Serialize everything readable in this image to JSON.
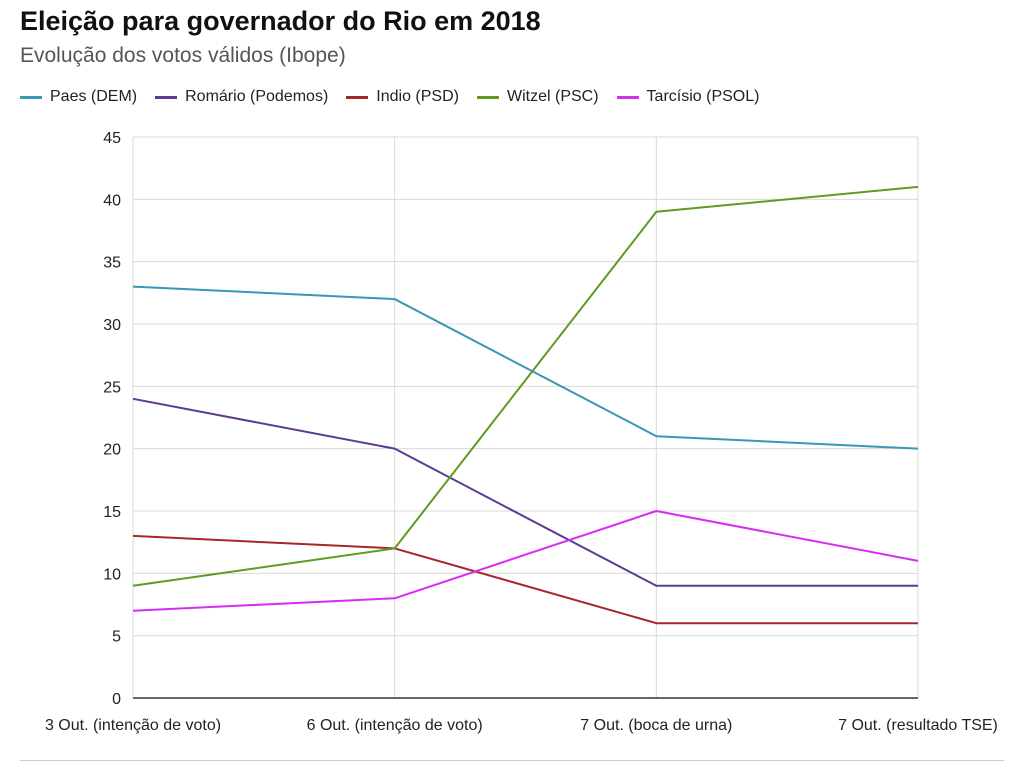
{
  "chart_data": {
    "type": "line",
    "title": "Eleição para governador do Rio em 2018",
    "subtitle": "Evolução dos votos válidos (Ibope)",
    "categories": [
      "3 Out. (intenção de voto)",
      "6 Out. (intenção de voto)",
      "7 Out. (boca de urna)",
      "7 Out. (resultado TSE)"
    ],
    "ylim": [
      0,
      45
    ],
    "yticks": [
      0,
      5,
      10,
      15,
      20,
      25,
      30,
      35,
      40,
      45
    ],
    "grid": true,
    "legend_position": "top-left",
    "series": [
      {
        "name": "Paes (DEM)",
        "color": "#3a97b5",
        "values": [
          33,
          32,
          21,
          20
        ]
      },
      {
        "name": "Romário (Podemos)",
        "color": "#5b3b94",
        "values": [
          24,
          20,
          9,
          9
        ]
      },
      {
        "name": "Indio (PSD)",
        "color": "#a8252b",
        "values": [
          13,
          12,
          6,
          6
        ]
      },
      {
        "name": "Witzel (PSC)",
        "color": "#5f9a22",
        "values": [
          9,
          12,
          39,
          41
        ]
      },
      {
        "name": "Tarcísio (PSOL)",
        "color": "#d52ef0",
        "values": [
          7,
          8,
          15,
          11
        ]
      }
    ]
  }
}
